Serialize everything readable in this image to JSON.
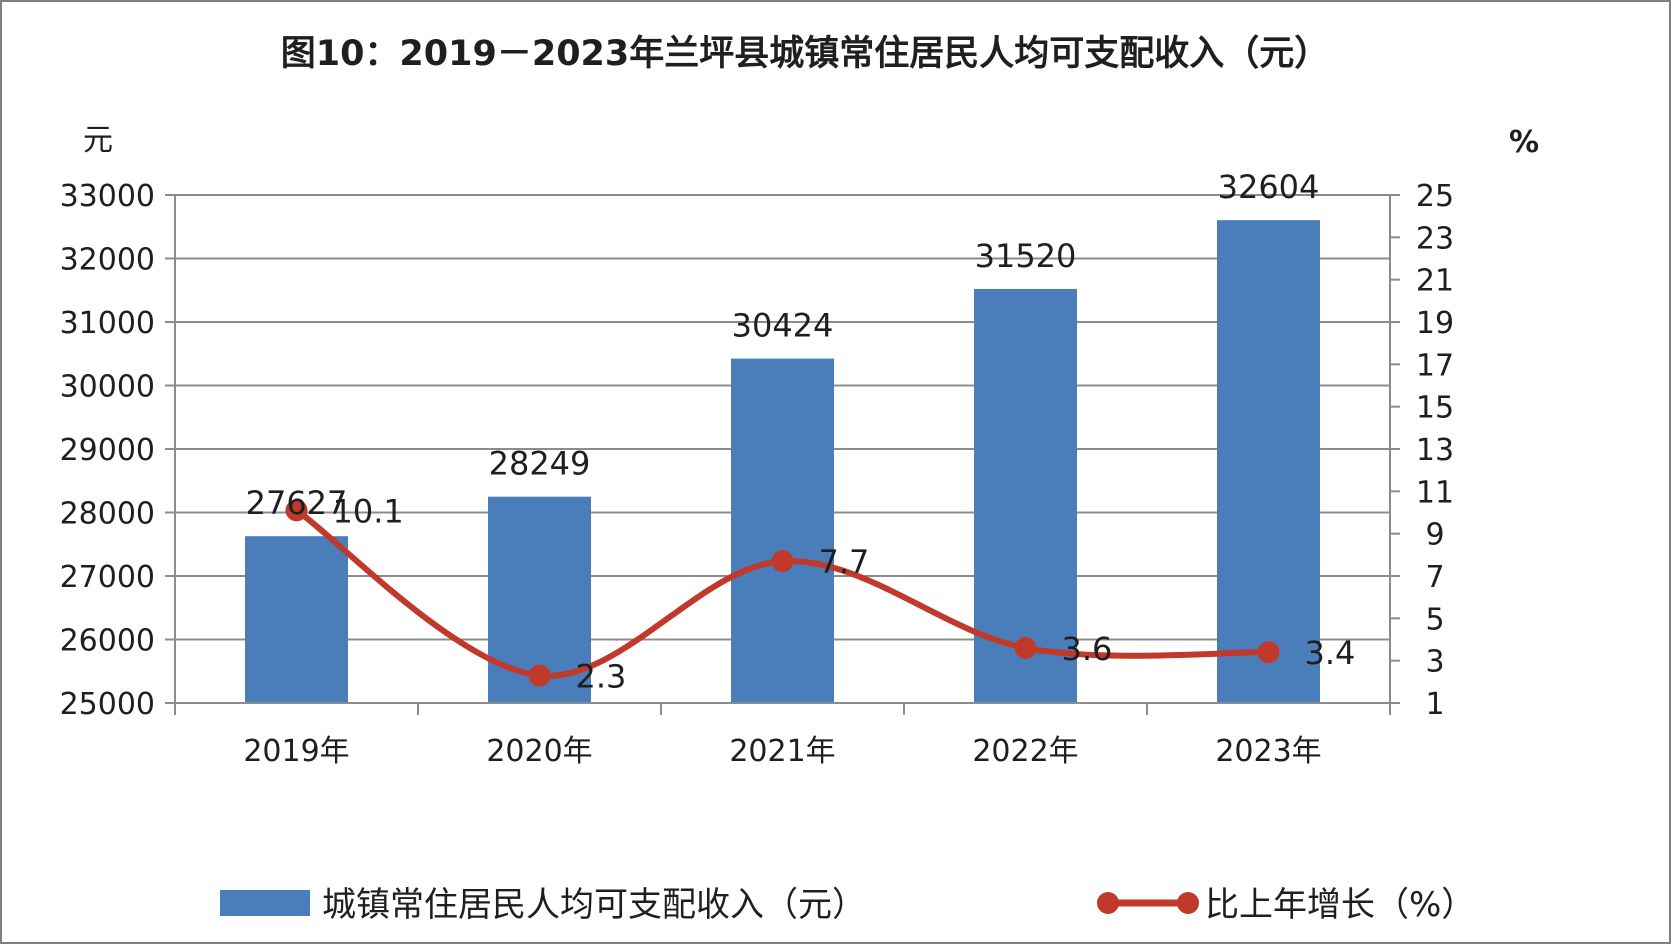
{
  "chart_data": {
    "type": "bar",
    "title": "图10：2019－2023年兰坪县城镇常住居民人均可支配收入（元）",
    "categories": [
      "2019年",
      "2020年",
      "2021年",
      "2022年",
      "2023年"
    ],
    "series": [
      {
        "name": "城镇常住居民人均可支配收入（元）",
        "type": "bar",
        "axis": "left",
        "values": [
          27627,
          28249,
          30424,
          31520,
          32604
        ],
        "color": "#4a7ebb"
      },
      {
        "name": "比上年增长（%）",
        "type": "line",
        "axis": "right",
        "smooth": true,
        "values": [
          10.1,
          2.3,
          7.7,
          3.6,
          3.4
        ],
        "color": "#c0392b"
      }
    ],
    "y_left": {
      "unit": "元",
      "range": [
        25000,
        33000
      ],
      "ticks": [
        25000,
        26000,
        27000,
        28000,
        29000,
        30000,
        31000,
        32000,
        33000
      ]
    },
    "y_right": {
      "unit": "%",
      "range": [
        1,
        25
      ],
      "ticks": [
        1,
        3,
        5,
        7,
        9,
        11,
        13,
        15,
        17,
        19,
        21,
        23,
        25
      ]
    },
    "grid": true,
    "legend": "bottom"
  }
}
